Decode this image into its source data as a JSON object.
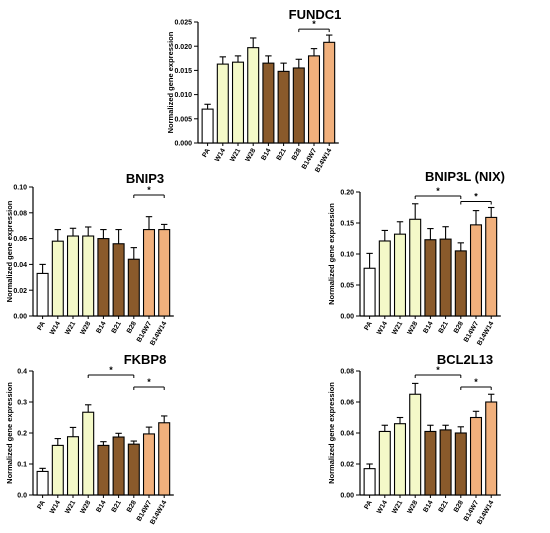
{
  "figure": {
    "background": "#ffffff"
  },
  "chart_data": [
    {
      "type": "bar",
      "title": "FUNDC1",
      "ylabel": "Normalized gene expression",
      "xlabel": "",
      "categories": [
        "PA",
        "W14",
        "W21",
        "W28",
        "B14",
        "B21",
        "B28",
        "B14W7",
        "B14W14"
      ],
      "values": [
        0.007,
        0.0163,
        0.0167,
        0.0197,
        0.0165,
        0.0148,
        0.0155,
        0.018,
        0.0208
      ],
      "errors": [
        0.001,
        0.0015,
        0.0013,
        0.002,
        0.0015,
        0.0017,
        0.0018,
        0.0015,
        0.0015
      ],
      "ylim": [
        0,
        0.025
      ],
      "yticks": [
        0.0,
        0.005,
        0.01,
        0.015,
        0.02,
        0.025
      ],
      "ytick_labels": [
        "0.000",
        "0.005",
        "0.010",
        "0.015",
        "0.020",
        "0.025"
      ],
      "significance": [
        {
          "from": 6,
          "to": 8,
          "label": "*"
        }
      ]
    },
    {
      "type": "bar",
      "title": "BNIP3",
      "ylabel": "Normalized gene expression",
      "xlabel": "",
      "categories": [
        "PA",
        "W14",
        "W21",
        "W28",
        "B14",
        "B21",
        "B28",
        "B14W7",
        "B14W14"
      ],
      "values": [
        0.033,
        0.058,
        0.062,
        0.062,
        0.06,
        0.056,
        0.044,
        0.067,
        0.067
      ],
      "errors": [
        0.007,
        0.009,
        0.006,
        0.007,
        0.007,
        0.011,
        0.009,
        0.01,
        0.004
      ],
      "ylim": [
        0,
        0.1
      ],
      "yticks": [
        0.0,
        0.02,
        0.04,
        0.06,
        0.08,
        0.1
      ],
      "ytick_labels": [
        "0.00",
        "0.02",
        "0.04",
        "0.06",
        "0.08",
        "0.10"
      ],
      "significance": [
        {
          "from": 6,
          "to": 8,
          "label": "*"
        }
      ]
    },
    {
      "type": "bar",
      "title": "BNIP3L (NIX)",
      "ylabel": "Normalized gene expression",
      "xlabel": "",
      "categories": [
        "PA",
        "W14",
        "W21",
        "W28",
        "B14",
        "B21",
        "B28",
        "B14W7",
        "B14W14"
      ],
      "values": [
        0.077,
        0.121,
        0.132,
        0.156,
        0.123,
        0.124,
        0.105,
        0.147,
        0.159
      ],
      "errors": [
        0.024,
        0.017,
        0.02,
        0.025,
        0.018,
        0.02,
        0.013,
        0.023,
        0.016
      ],
      "ylim": [
        0,
        0.2
      ],
      "yticks": [
        0.0,
        0.05,
        0.1,
        0.15,
        0.2
      ],
      "ytick_labels": [
        "0.00",
        "0.05",
        "0.10",
        "0.15",
        "0.20"
      ],
      "significance": [
        {
          "from": 3,
          "to": 6,
          "label": "*"
        },
        {
          "from": 6,
          "to": 8,
          "label": "*"
        }
      ]
    },
    {
      "type": "bar",
      "title": "FKBP8",
      "ylabel": "Normalized gene expression",
      "xlabel": "",
      "categories": [
        "PA",
        "W14",
        "W21",
        "W28",
        "B14",
        "B21",
        "B28",
        "B14W7",
        "B14W14"
      ],
      "values": [
        0.076,
        0.16,
        0.188,
        0.267,
        0.16,
        0.187,
        0.164,
        0.197,
        0.233
      ],
      "errors": [
        0.01,
        0.022,
        0.03,
        0.024,
        0.012,
        0.012,
        0.01,
        0.022,
        0.022
      ],
      "ylim": [
        0,
        0.4
      ],
      "yticks": [
        0.0,
        0.1,
        0.2,
        0.3,
        0.4
      ],
      "ytick_labels": [
        "0.0",
        "0.1",
        "0.2",
        "0.3",
        "0.4"
      ],
      "significance": [
        {
          "from": 3,
          "to": 6,
          "label": "*"
        },
        {
          "from": 6,
          "to": 8,
          "label": "*"
        }
      ]
    },
    {
      "type": "bar",
      "title": "BCL2L13",
      "ylabel": "Normalized gene expression",
      "xlabel": "",
      "categories": [
        "PA",
        "W14",
        "W21",
        "W28",
        "B14",
        "B21",
        "B28",
        "B14W7",
        "B14W14"
      ],
      "values": [
        0.017,
        0.041,
        0.046,
        0.065,
        0.041,
        0.042,
        0.04,
        0.05,
        0.06
      ],
      "errors": [
        0.003,
        0.004,
        0.004,
        0.007,
        0.004,
        0.003,
        0.004,
        0.004,
        0.005
      ],
      "ylim": [
        0,
        0.08
      ],
      "yticks": [
        0.0,
        0.02,
        0.04,
        0.06,
        0.08
      ],
      "ytick_labels": [
        "0.00",
        "0.02",
        "0.04",
        "0.06",
        "0.08"
      ],
      "significance": [
        {
          "from": 3,
          "to": 6,
          "label": "*"
        },
        {
          "from": 6,
          "to": 8,
          "label": "*"
        }
      ]
    }
  ],
  "bar_colors": [
    "#ffffff",
    "#f4f9c8",
    "#f4f9c8",
    "#f4f9c8",
    "#8a5a2b",
    "#8a5a2b",
    "#8a5a2b",
    "#f1b07c",
    "#f1b07c"
  ],
  "bar_stroke": "#000000"
}
